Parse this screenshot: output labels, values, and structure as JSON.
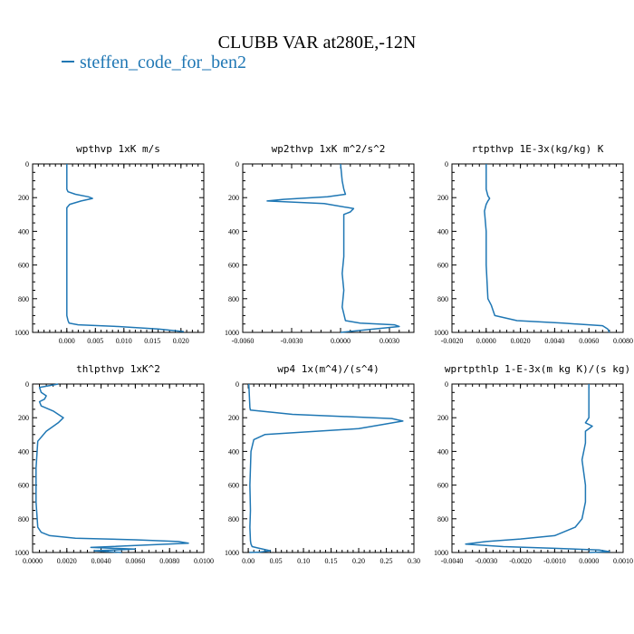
{
  "title": "CLUBB VAR at280E,-12N",
  "legend": {
    "label": "steffen_code_for_ben2",
    "color": "#1f77b4"
  },
  "chart_data": [
    {
      "type": "line",
      "title": "wpthvp  1xK m/s",
      "xlim": [
        -0.006,
        0.024
      ],
      "xticks": [
        "0.000",
        "0.005",
        "0.010",
        "0.015",
        "0.020"
      ],
      "xtick_values": [
        0,
        0.005,
        0.01,
        0.015,
        0.02
      ],
      "ylim": [
        1000,
        0
      ],
      "yticks": [
        "0",
        "200",
        "400",
        "600",
        "800",
        "1000"
      ],
      "series": [
        {
          "x": [
            0,
            0,
            0,
            0.0002,
            0.0015,
            0.0038,
            0.0045,
            0.0025,
            0.0005,
            0,
            0,
            0,
            0,
            0,
            0.0002,
            0.0004,
            0.002,
            0.009,
            0.016,
            0.0205
          ],
          "y": [
            0,
            100,
            150,
            165,
            180,
            195,
            205,
            220,
            240,
            260,
            300,
            500,
            700,
            900,
            930,
            945,
            955,
            965,
            980,
            995
          ]
        }
      ]
    },
    {
      "type": "line",
      "title": "wp2thvp  1xK m^2/s^2",
      "xlim": [
        -0.006,
        0.0045
      ],
      "xticks": [
        "-0.0060",
        "-0.0030",
        "0.0000",
        "0.0030"
      ],
      "xtick_values": [
        -0.006,
        -0.003,
        0,
        0.003
      ],
      "ylim": [
        1000,
        0
      ],
      "yticks": [
        "0",
        "200",
        "400",
        "600",
        "800",
        "1000"
      ],
      "series": [
        {
          "x": [
            0,
            0.0001,
            0.0002,
            0.0003,
            -0.0008,
            -0.0035,
            -0.0045,
            -0.001,
            0.0008,
            0.0006,
            0.0002,
            0.0002,
            0.0002,
            0.0001,
            0.0002,
            0.0001,
            0.0003,
            0.0012,
            0.0033,
            0.0036,
            0.0015,
            0
          ],
          "y": [
            0,
            100,
            150,
            180,
            195,
            210,
            220,
            235,
            265,
            285,
            300,
            400,
            550,
            650,
            750,
            850,
            930,
            945,
            955,
            965,
            985,
            1000
          ]
        }
      ]
    },
    {
      "type": "line",
      "title": "rtpthvp  1E-3x(kg/kg) K",
      "xlim": [
        -0.002,
        0.008
      ],
      "xticks": [
        "-0.0020",
        "0.0000",
        "0.0020",
        "0.0040",
        "0.0060",
        "0.0080"
      ],
      "xtick_values": [
        -0.002,
        0,
        0.002,
        0.004,
        0.006,
        0.008
      ],
      "ylim": [
        1000,
        0
      ],
      "yticks": [
        "0",
        "200",
        "400",
        "600",
        "800",
        "1000"
      ],
      "series": [
        {
          "x": [
            0,
            0,
            0.0001,
            0.0002,
            0.0001,
            0,
            -0.0001,
            0,
            0,
            0.0001,
            0.0003,
            0.0005,
            0.0018,
            0.0045,
            0.0068,
            0.0071,
            0.0072
          ],
          "y": [
            0,
            150,
            190,
            205,
            220,
            240,
            280,
            400,
            600,
            800,
            840,
            900,
            930,
            945,
            960,
            980,
            1000
          ]
        }
      ]
    },
    {
      "type": "line",
      "title": "thlpthvp  1xK^2",
      "xlim": [
        0,
        0.01
      ],
      "xticks": [
        "0.0000",
        "0.0020",
        "0.0040",
        "0.0060",
        "0.0080",
        "0.0100"
      ],
      "xtick_values": [
        0,
        0.002,
        0.004,
        0.006,
        0.008,
        0.01
      ],
      "ylim": [
        1000,
        0
      ],
      "yticks": [
        "0",
        "200",
        "400",
        "600",
        "800",
        "1000"
      ],
      "series": [
        {
          "x": [
            0.0015,
            0.0004,
            0.0005,
            0.0008,
            0.0007,
            0.0004,
            0.0005,
            0.0012,
            0.0018,
            0.0015,
            0.0008,
            0.0003,
            0.0002,
            0.0002,
            0.0003,
            0.0005,
            0.001,
            0.0025,
            0.006,
            0.0085,
            0.0091,
            0.0034,
            0.006,
            0.0036,
            0.0052
          ],
          "y": [
            0,
            20,
            50,
            70,
            90,
            105,
            130,
            160,
            200,
            230,
            280,
            340,
            500,
            700,
            850,
            880,
            900,
            915,
            925,
            935,
            945,
            970,
            980,
            990,
            1000
          ]
        }
      ]
    },
    {
      "type": "line",
      "title": "wp4  1x(m^4)/(s^4)",
      "xlim": [
        -0.01,
        0.3
      ],
      "xticks": [
        "0.00",
        "0.05",
        "0.10",
        "0.15",
        "0.20",
        "0.25",
        "0.30"
      ],
      "xtick_values": [
        0,
        0.05,
        0.1,
        0.15,
        0.2,
        0.25,
        0.3
      ],
      "ylim": [
        1000,
        0
      ],
      "yticks": [
        "0",
        "200",
        "400",
        "600",
        "800",
        "1000"
      ],
      "series": [
        {
          "x": [
            0.001,
            0.003,
            0.004,
            0.08,
            0.26,
            0.28,
            0.2,
            0.03,
            0.01,
            0.005,
            0.003,
            0.004,
            0.003,
            0.004,
            0.005,
            0.007,
            0.02,
            0.04,
            0.02,
            0.002
          ],
          "y": [
            0,
            140,
            155,
            180,
            205,
            220,
            265,
            300,
            330,
            400,
            600,
            750,
            850,
            930,
            950,
            965,
            975,
            990,
            998,
            1000
          ]
        }
      ]
    },
    {
      "type": "line",
      "title": "wprtpthlp  1-E-3x(m kg K)/(s kg)",
      "xlim": [
        -0.004,
        0.001
      ],
      "xticks": [
        "-0.0040",
        "-0.0030",
        "-0.0020",
        "-0.0010",
        "0.0000",
        "0.0010"
      ],
      "xtick_values": [
        -0.004,
        -0.003,
        -0.002,
        -0.001,
        0,
        0.001
      ],
      "ylim": [
        1000,
        0
      ],
      "yticks": [
        "0",
        "200",
        "400",
        "600",
        "800",
        "1000"
      ],
      "series": [
        {
          "x": [
            0,
            0,
            -0.0001,
            0.0001,
            -0.0001,
            -0.0001,
            -0.0002,
            -0.0001,
            -0.0001,
            -0.0002,
            -0.0004,
            -0.001,
            -0.002,
            -0.003,
            -0.0036,
            -0.0025,
            -0.001,
            0.0003,
            0.0006,
            0
          ],
          "y": [
            0,
            200,
            230,
            250,
            280,
            350,
            450,
            600,
            700,
            800,
            850,
            900,
            920,
            935,
            950,
            965,
            975,
            985,
            995,
            1000
          ]
        }
      ]
    }
  ]
}
